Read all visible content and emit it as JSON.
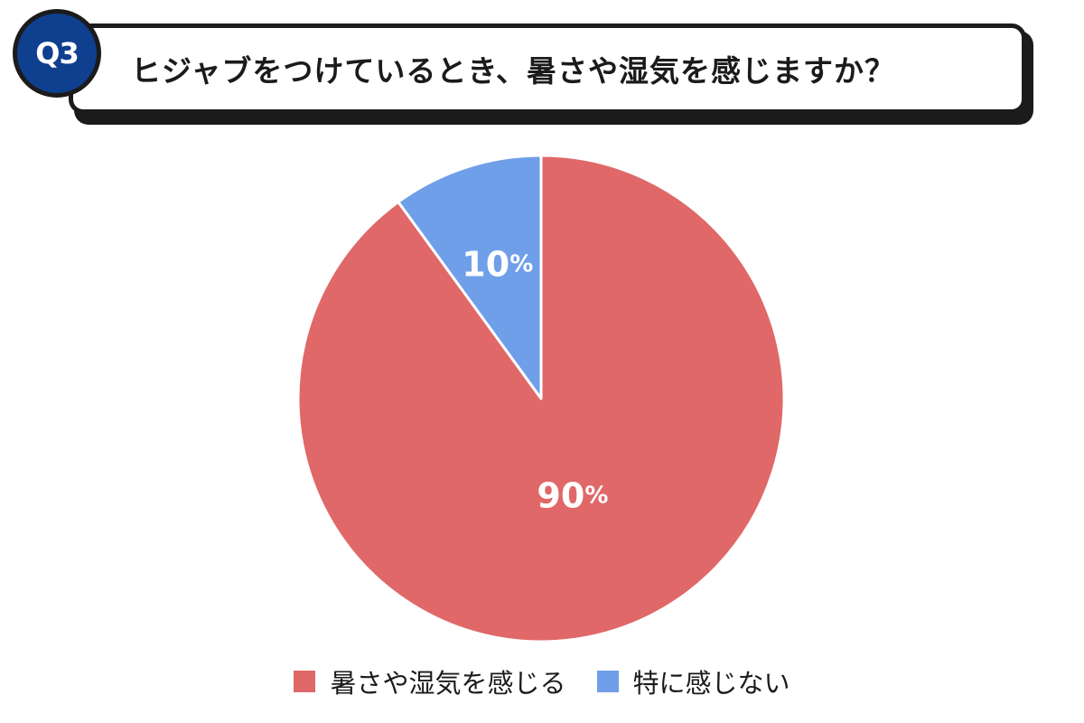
{
  "header": {
    "badge": "Q3",
    "question": "ヒジャブをつけているとき、暑さや湿気を感じますか？"
  },
  "colors": {
    "badge_bg": "#0f3f8f",
    "frame": "#1b1b1b",
    "slice_hot": "#e06868",
    "slice_not": "#6f9fe8"
  },
  "chart_data": {
    "type": "pie",
    "title": "",
    "start_angle_deg": 0,
    "direction": "clockwise",
    "slices": [
      {
        "label": "暑さや湿気を感じる",
        "value": 90,
        "display": "90",
        "unit": "%",
        "color": "#e06868"
      },
      {
        "label": "特に感じない",
        "value": 10,
        "display": "10",
        "unit": "%",
        "color": "#6f9fe8"
      }
    ],
    "legend": {
      "placement": "bottom",
      "entries": [
        "暑さや湿気を感じる",
        "特に感じない"
      ]
    }
  }
}
